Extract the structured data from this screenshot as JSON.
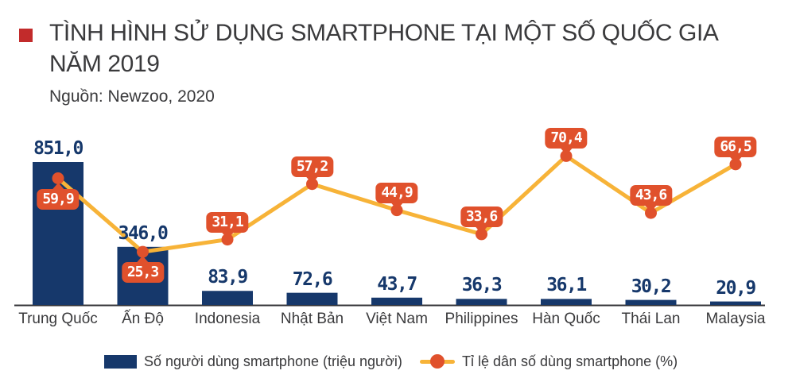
{
  "header": {
    "title_lines": [
      "TÌNH HÌNH SỬ DỤNG SMARTPHONE TẠI MỘT SỐ QUỐC GIA",
      "NĂM 2019"
    ],
    "source": "Nguồn: Newzoo, 2020",
    "bullet_color": "#c22b2b"
  },
  "legend": {
    "bar_label": "Số người dùng smartphone (triệu người)",
    "line_label": "Tỉ lệ dân số dùng smartphone (%)"
  },
  "colors": {
    "bar": "#16386b",
    "bar_value_text": "#16386b",
    "line": "#f7b338",
    "marker": "#e0512c",
    "badge": "#e0512c",
    "badge_text": "#ffffff",
    "axis": "#35353a",
    "text": "#3a3a3c",
    "title_bullet": "#c22b2b"
  },
  "chart_data": {
    "type": "bar",
    "title": "TÌNH HÌNH SỬ DỤNG SMARTPHONE TẠI MỘT SỐ QUỐC GIA NĂM 2019",
    "source": "Nguồn: Newzoo, 2020",
    "categories": [
      "Trung Quốc",
      "Ấn Độ",
      "Indonesia",
      "Nhật Bản",
      "Việt Nam",
      "Philippines",
      "Hàn Quốc",
      "Thái Lan",
      "Malaysia"
    ],
    "series": [
      {
        "name": "Số người dùng smartphone (triệu người)",
        "type": "bar",
        "color": "#16386b",
        "values": [
          851.0,
          346.0,
          83.9,
          72.6,
          43.7,
          36.3,
          36.1,
          30.2,
          20.9
        ],
        "labels": [
          "851,0",
          "346,0",
          "83,9",
          "72,6",
          "43,7",
          "36,3",
          "36,1",
          "30,2",
          "20,9"
        ]
      },
      {
        "name": "Tỉ lệ dân số dùng smartphone (%)",
        "type": "line",
        "color": "#f7b338",
        "marker_color": "#e0512c",
        "values": [
          59.9,
          25.3,
          31.1,
          57.2,
          44.9,
          33.6,
          70.4,
          43.6,
          66.5
        ],
        "labels": [
          "59,9",
          "25,3",
          "31,1",
          "57,2",
          "44,9",
          "33,6",
          "70,4",
          "43,6",
          "66,5"
        ],
        "badge_positions": [
          "below",
          "below",
          "above",
          "above",
          "above",
          "above",
          "above",
          "above",
          "above"
        ]
      }
    ],
    "xlabel": "",
    "ylabel": "",
    "bar_axis_range": [
      0,
      900
    ],
    "line_axis_range": [
      0,
      80
    ],
    "grid": false,
    "value_labels_shown": true,
    "decimal_separator": ",",
    "legend_position": "bottom"
  }
}
